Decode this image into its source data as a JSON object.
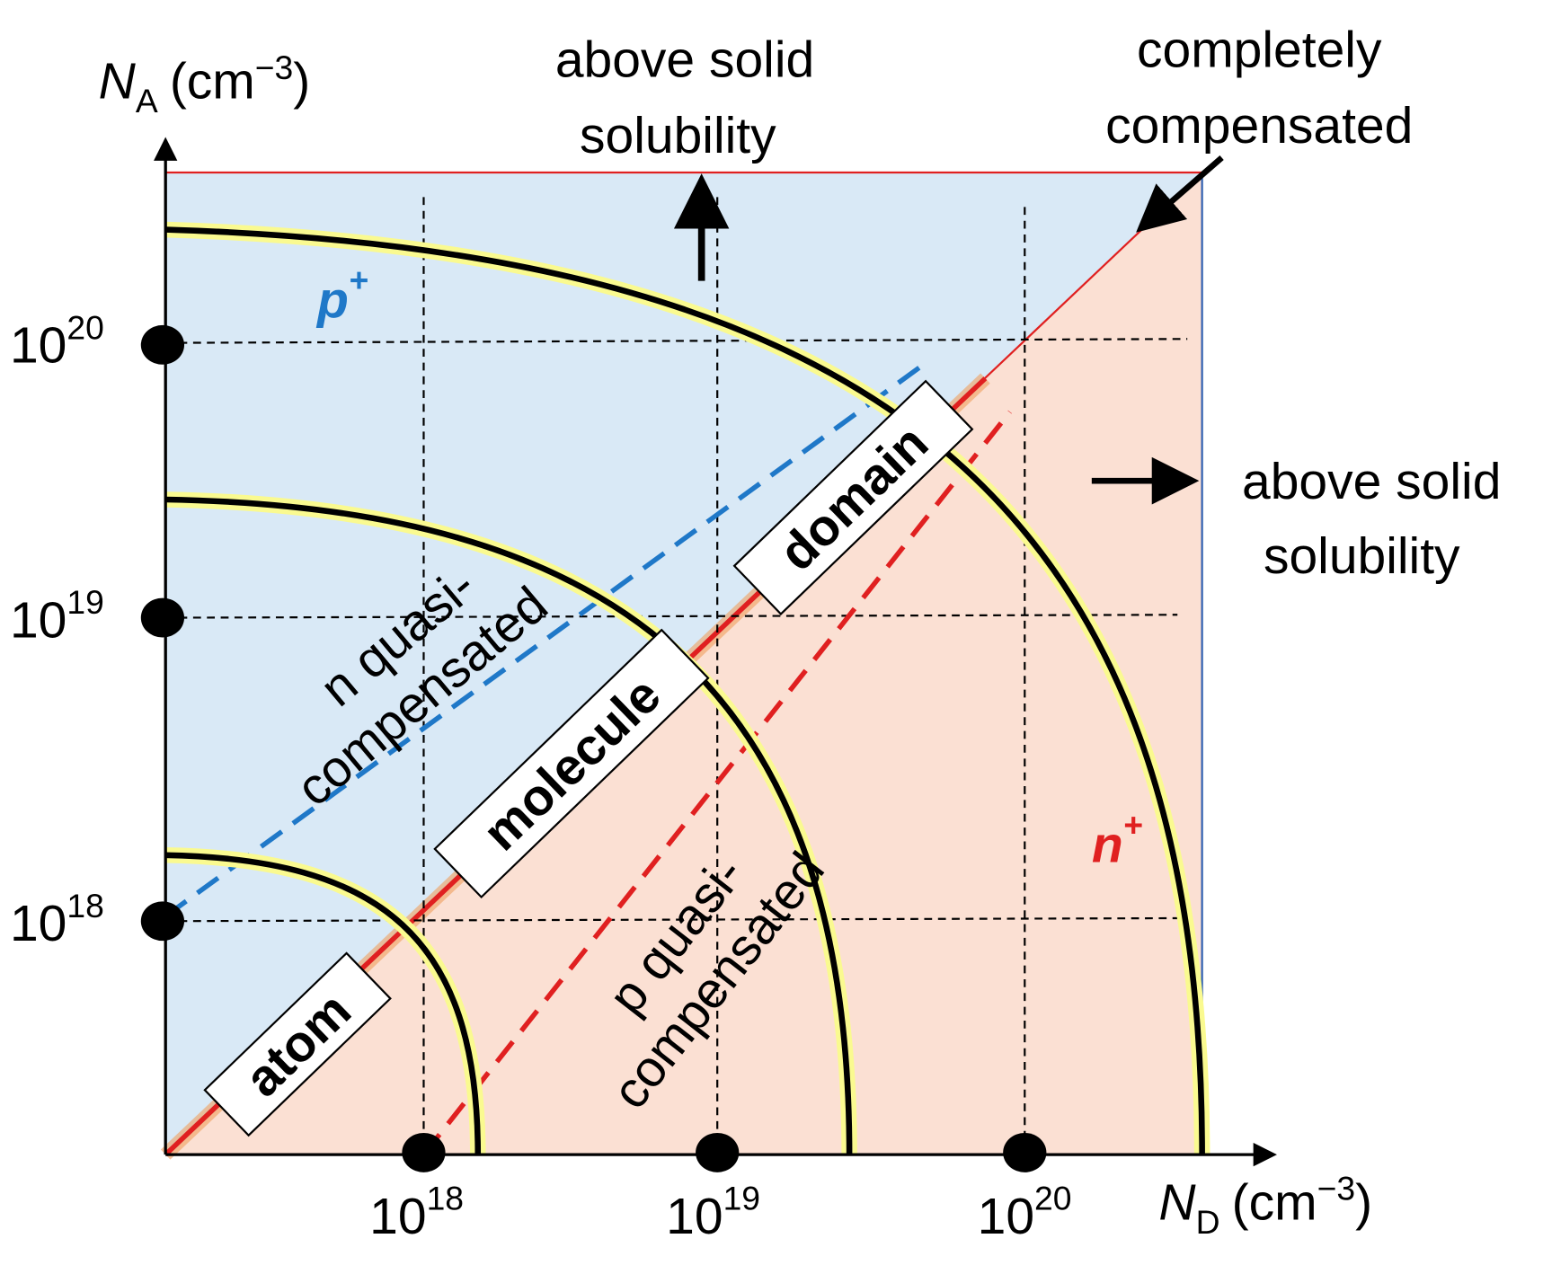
{
  "y_axis": {
    "symbol": "N",
    "subscript": "A",
    "unit": "(cm",
    "exponent": "−3",
    "close": ")",
    "ticks": [
      {
        "base": "10",
        "exponent": "18"
      },
      {
        "base": "10",
        "exponent": "19"
      },
      {
        "base": "10",
        "exponent": "20"
      }
    ]
  },
  "x_axis": {
    "symbol": "N",
    "subscript": "D",
    "unit": "(cm",
    "exponent": "−3",
    "close": ")",
    "ticks": [
      {
        "base": "10",
        "exponent": "18"
      },
      {
        "base": "10",
        "exponent": "19"
      },
      {
        "base": "10",
        "exponent": "20"
      }
    ]
  },
  "annotations": {
    "top_solubility": [
      "above solid",
      "solubility"
    ],
    "completely_compensated": [
      "completely",
      "compensated"
    ],
    "right_solubility": [
      "above solid",
      "solubility"
    ],
    "p_plus": {
      "letter": "p",
      "sign": "+"
    },
    "n_plus": {
      "letter": "n",
      "sign": "+"
    },
    "n_quasi": [
      "n quasi-",
      "compensated"
    ],
    "p_quasi": [
      "p quasi-",
      "compensated"
    ]
  },
  "boxes": [
    "atom",
    "molecule",
    "domain"
  ]
}
